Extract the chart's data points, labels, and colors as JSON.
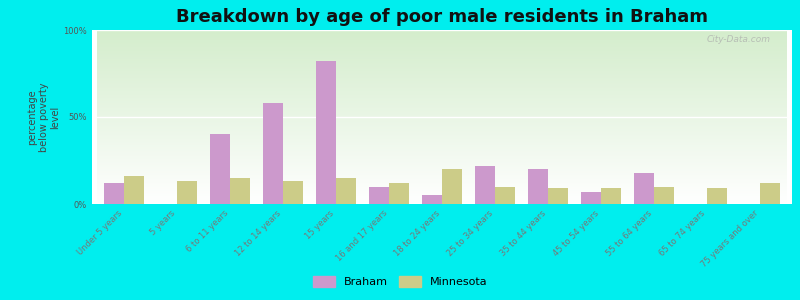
{
  "title": "Breakdown by age of poor male residents in Braham",
  "ylabel": "percentage\nbelow poverty\nlevel",
  "categories": [
    "Under 5 years",
    "5 years",
    "6 to 11 years",
    "12 to 14 years",
    "15 years",
    "16 and 17 years",
    "18 to 24 years",
    "25 to 34 years",
    "35 to 44 years",
    "45 to 54 years",
    "55 to 64 years",
    "65 to 74 years",
    "75 years and over"
  ],
  "braham_values": [
    12,
    0,
    40,
    58,
    82,
    10,
    5,
    22,
    20,
    7,
    18,
    0,
    0
  ],
  "minnesota_values": [
    16,
    13,
    15,
    13,
    15,
    12,
    20,
    10,
    9,
    9,
    10,
    9,
    12
  ],
  "braham_color": "#cc99cc",
  "minnesota_color": "#cccc88",
  "bg_top": "#ffffff",
  "bg_bottom": "#d4edcc",
  "outer_bg": "#00eeee",
  "ylim": [
    0,
    100
  ],
  "yticks": [
    0,
    50,
    100
  ],
  "ytick_labels": [
    "0%",
    "50%",
    "100%"
  ],
  "title_fontsize": 13,
  "ylabel_fontsize": 7,
  "tick_fontsize": 6,
  "legend_labels": [
    "Braham",
    "Minnesota"
  ],
  "bar_width": 0.38,
  "watermark": "City-Data.com"
}
